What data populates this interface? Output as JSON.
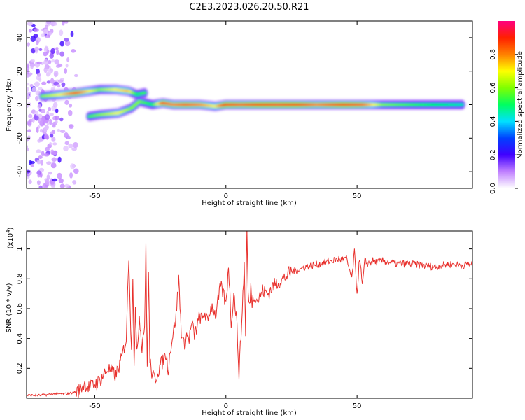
{
  "title": "C2E3.2023.026.20.50.R21",
  "chart_data": [
    {
      "type": "heatmap",
      "title": "C2E3.2023.026.20.50.R21",
      "xlabel": "Height of straight line (km)",
      "ylabel": "Frequency (Hz)",
      "xlim": [
        -76,
        94
      ],
      "ylim": [
        -50,
        50
      ],
      "x_ticks": [
        -50,
        0,
        50
      ],
      "y_ticks": [
        -40,
        -20,
        0,
        20,
        40
      ],
      "colorbar": {
        "label": "Normalized spectral amplitude",
        "range": [
          0,
          1
        ],
        "ticks": [
          0.0,
          0.2,
          0.4,
          0.6,
          0.8
        ],
        "tick_labels": [
          "0.0",
          "0.2",
          "0.4",
          "0.6",
          "0.8"
        ],
        "colors": [
          "#ffffff",
          "#c080ff",
          "#4000ff",
          "#0040ff",
          "#00e0ff",
          "#00ff60",
          "#80ff00",
          "#ffff00",
          "#ff8000",
          "#ff2000",
          "#ff0080"
        ]
      },
      "trace": [
        {
          "x": -70,
          "y": 5,
          "amplitude": 0.6
        },
        {
          "x": -63,
          "y": 6,
          "amplitude": 0.7
        },
        {
          "x": -57,
          "y": 7,
          "amplitude": 0.85
        },
        {
          "x": -48,
          "y": 9,
          "amplitude": 0.6
        },
        {
          "x": -42,
          "y": 9,
          "amplitude": 0.7
        },
        {
          "x": -37,
          "y": 8,
          "amplitude": 0.75
        },
        {
          "x": -34,
          "y": 6,
          "amplitude": 0.5
        },
        {
          "x": -31,
          "y": 7,
          "amplitude": 0.55
        },
        {
          "x": -52,
          "y": -7,
          "amplitude": 0.55
        },
        {
          "x": -48,
          "y": -6,
          "amplitude": 0.6
        },
        {
          "x": -41,
          "y": -5,
          "amplitude": 0.7
        },
        {
          "x": -36,
          "y": -2,
          "amplitude": 0.6
        },
        {
          "x": -33,
          "y": 2,
          "amplitude": 0.6
        },
        {
          "x": -28,
          "y": 0,
          "amplitude": 0.5
        },
        {
          "x": -24,
          "y": 1,
          "amplitude": 0.85
        },
        {
          "x": -20,
          "y": 0,
          "amplitude": 0.8
        },
        {
          "x": -15,
          "y": 0,
          "amplitude": 0.85
        },
        {
          "x": -10,
          "y": 0,
          "amplitude": 0.8
        },
        {
          "x": -4,
          "y": -1,
          "amplitude": 0.7
        },
        {
          "x": 0,
          "y": 0,
          "amplitude": 0.9
        },
        {
          "x": 6,
          "y": 0,
          "amplitude": 0.85
        },
        {
          "x": 12,
          "y": 0,
          "amplitude": 0.9
        },
        {
          "x": 20,
          "y": 0,
          "amplitude": 0.95
        },
        {
          "x": 28,
          "y": 0,
          "amplitude": 0.9
        },
        {
          "x": 35,
          "y": 0,
          "amplitude": 0.8
        },
        {
          "x": 45,
          "y": 0,
          "amplitude": 0.9
        },
        {
          "x": 52,
          "y": 0,
          "amplitude": 0.85
        },
        {
          "x": 60,
          "y": 0,
          "amplitude": 0.6
        },
        {
          "x": 70,
          "y": 0,
          "amplitude": 0.55
        },
        {
          "x": 80,
          "y": 0,
          "amplitude": 0.5
        },
        {
          "x": 90,
          "y": 0,
          "amplitude": 0.45
        }
      ],
      "noise_region_x": [
        -76,
        -57
      ]
    },
    {
      "type": "line",
      "xlabel": "Height of straight line (km)",
      "ylabel": "SNR (10 * v/v)",
      "y_multiplier_label": "(x10",
      "y_multiplier_exponent": "4",
      "y_multiplier_close": ")",
      "xlim": [
        -76,
        94
      ],
      "ylim": [
        0,
        1.12
      ],
      "x_ticks": [
        -50,
        0,
        50
      ],
      "y_ticks": [
        0.2,
        0.4,
        0.6,
        0.8,
        1
      ],
      "y_tick_labels": [
        "0.2",
        "0.4",
        "0.6",
        "0.8",
        "1"
      ],
      "color": "#e8302c",
      "series": [
        {
          "x": [
            -76,
            -70,
            -65,
            -60,
            -56,
            -54,
            -52,
            -48,
            -45,
            -42,
            -40,
            -38,
            -37,
            -36,
            -35.5,
            -35,
            -34.5,
            -34,
            -33,
            -32,
            -31,
            -30.5,
            -30,
            -29.5,
            -29,
            -28,
            -27,
            -26,
            -25,
            -24,
            -23,
            -22,
            -21,
            -20,
            -19,
            -18,
            -17,
            -16,
            -15,
            -14,
            -13,
            -12,
            -11,
            -10,
            -9,
            -8,
            -7,
            -6,
            -5,
            -4,
            -3,
            -2,
            -1,
            0,
            1,
            2,
            3,
            4,
            5,
            6,
            7,
            7.5,
            8,
            8.5,
            9,
            9.5,
            10,
            11,
            12,
            14,
            16,
            18,
            20,
            22,
            25,
            28,
            30,
            33,
            36,
            40,
            43,
            46,
            48,
            49,
            50,
            51,
            52,
            53,
            54,
            56,
            58,
            60,
            65,
            70,
            75,
            80,
            85,
            90,
            94
          ],
          "y": [
            0.02,
            0.02,
            0.03,
            0.03,
            0.05,
            0.1,
            0.07,
            0.12,
            0.2,
            0.15,
            0.25,
            0.4,
            0.96,
            0.3,
            0.85,
            0.25,
            0.6,
            0.28,
            0.55,
            0.35,
            0.5,
            1.0,
            0.2,
            0.85,
            0.25,
            0.15,
            0.12,
            0.18,
            0.22,
            0.25,
            0.3,
            0.2,
            0.35,
            0.45,
            0.55,
            0.8,
            0.45,
            0.35,
            0.42,
            0.4,
            0.5,
            0.42,
            0.48,
            0.55,
            0.52,
            0.58,
            0.5,
            0.6,
            0.62,
            0.55,
            0.65,
            0.75,
            0.7,
            0.62,
            0.9,
            0.5,
            0.7,
            0.55,
            0.17,
            0.5,
            0.9,
            0.45,
            1.12,
            0.7,
            0.6,
            0.75,
            0.65,
            0.7,
            0.65,
            0.72,
            0.7,
            0.75,
            0.78,
            0.8,
            0.85,
            0.86,
            0.88,
            0.89,
            0.9,
            0.92,
            0.93,
            0.93,
            0.8,
            0.98,
            0.7,
            0.95,
            0.75,
            0.92,
            0.9,
            0.92,
            0.91,
            0.92,
            0.9,
            0.9,
            0.89,
            0.88,
            0.9,
            0.89,
            0.9
          ]
        }
      ]
    }
  ]
}
